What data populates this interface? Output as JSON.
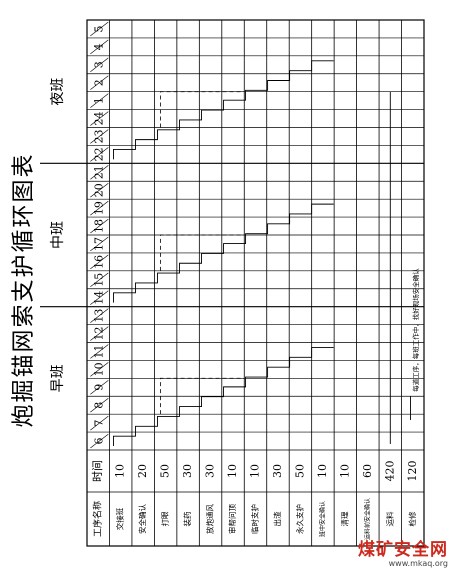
{
  "title": "炮掘锚网索支护循环图表",
  "headers": {
    "process": "工序名称",
    "time": "时间"
  },
  "shifts": [
    {
      "name": "早班",
      "hours": [
        "6",
        "7",
        "8",
        "9",
        "10",
        "11",
        "12",
        "13"
      ]
    },
    {
      "name": "中班",
      "hours": [
        "14",
        "15",
        "16",
        "17",
        "18",
        "19",
        "20",
        "21"
      ]
    },
    {
      "name": "夜班",
      "hours": [
        "22",
        "23",
        "24",
        "1",
        "2",
        "3",
        "4",
        "5"
      ]
    }
  ],
  "rows": [
    {
      "name": "交接班",
      "time": "10"
    },
    {
      "name": "安全确认",
      "time": "20"
    },
    {
      "name": "打眼",
      "time": "50"
    },
    {
      "name": "装药",
      "time": "30"
    },
    {
      "name": "放炮通风",
      "time": "30"
    },
    {
      "name": "审帮问顶",
      "time": "10"
    },
    {
      "name": "临时支护",
      "time": "10"
    },
    {
      "name": "出渣",
      "time": "30"
    },
    {
      "name": "永久支护",
      "time": "50"
    },
    {
      "name": "班中安全确认",
      "time": "10"
    },
    {
      "name": "清理",
      "time": "10"
    },
    {
      "name": "运料前安全确认",
      "time": "60"
    },
    {
      "name": "运料",
      "time": "420"
    },
    {
      "name": "检修",
      "time": "120"
    },
    {
      "name": "备注",
      "time": "",
      "note": "每道工序，每班工作中，找好现场安全确认"
    }
  ],
  "watermark": {
    "text": "煤矿安全网",
    "url": "www.mkaq.org"
  },
  "colors": {
    "line": "#000000",
    "watermark": "#cc2a1e"
  }
}
